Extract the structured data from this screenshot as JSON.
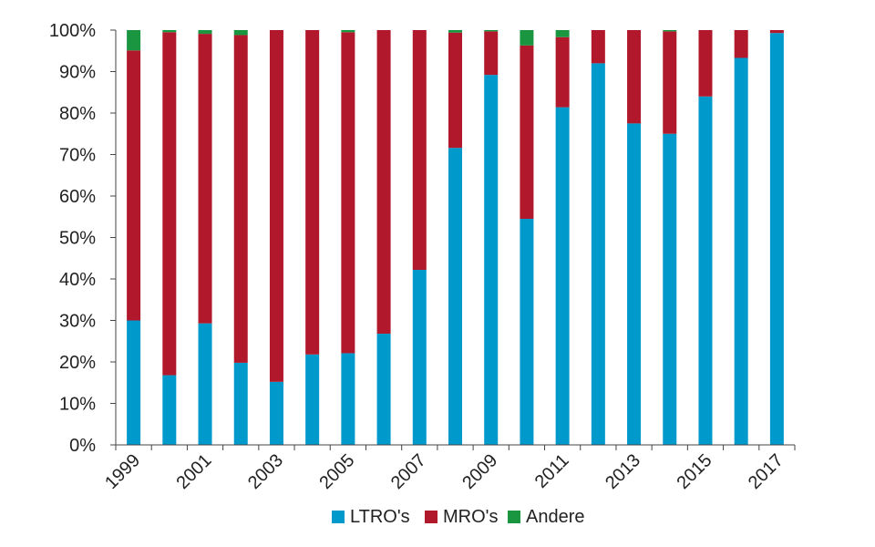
{
  "chart_data": {
    "type": "bar",
    "stacked": true,
    "title": "",
    "xlabel": "",
    "ylabel": "",
    "ylim": [
      0,
      100
    ],
    "y_ticks": [
      "0%",
      "10%",
      "20%",
      "30%",
      "40%",
      "50%",
      "60%",
      "70%",
      "80%",
      "90%",
      "100%"
    ],
    "categories": [
      "1999",
      "2000",
      "2001",
      "2002",
      "2003",
      "2004",
      "2005",
      "2006",
      "2007",
      "2008",
      "2009",
      "2010",
      "2011",
      "2012",
      "2013",
      "2014",
      "2015",
      "2016",
      "2017"
    ],
    "x_tick_labels": [
      "1999",
      "2001",
      "2003",
      "2005",
      "2007",
      "2009",
      "2011",
      "2013",
      "2015",
      "2017"
    ],
    "series": [
      {
        "name": "LTRO's",
        "color": "#0099cc",
        "values": [
          30,
          16.8,
          29.3,
          19.8,
          15.2,
          21.8,
          22.1,
          26.8,
          42.2,
          71.6,
          89.2,
          54.5,
          81.4,
          92,
          77.5,
          75,
          84,
          93.3,
          99.3
        ]
      },
      {
        "name": "MRO's",
        "color": "#b2182b",
        "values": [
          65.1,
          82.7,
          69.8,
          79,
          84.8,
          78.2,
          77.4,
          73.2,
          57.8,
          27.8,
          10.5,
          41.8,
          16.9,
          8,
          22.5,
          24.7,
          16,
          6.7,
          0.7
        ]
      },
      {
        "name": "Andere",
        "color": "#1a9641",
        "values": [
          4.9,
          0.5,
          0.9,
          1.2,
          0,
          0,
          0.5,
          0,
          0,
          0.6,
          0.3,
          3.7,
          1.7,
          0,
          0,
          0.3,
          0,
          0,
          0
        ]
      }
    ],
    "grid": false,
    "legend_position": "bottom"
  }
}
